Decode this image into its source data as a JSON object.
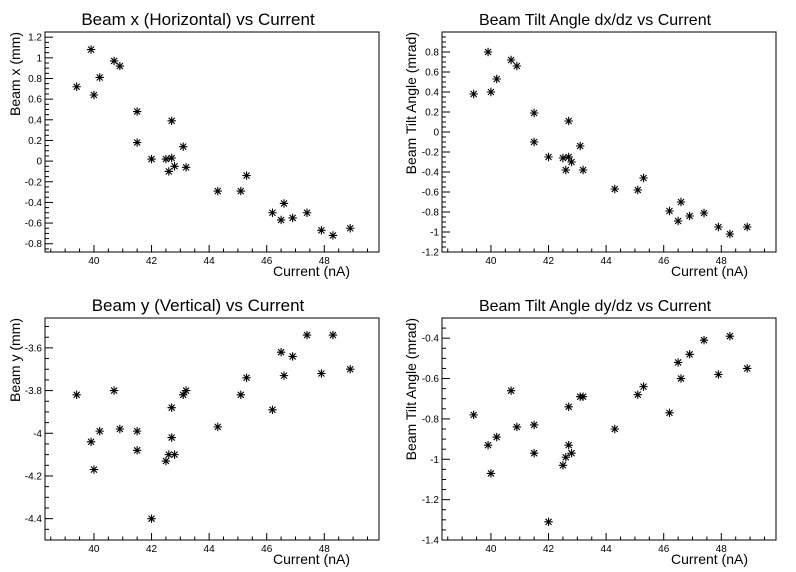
{
  "chart_data": [
    {
      "type": "scatter",
      "title": "Beam x (Horizontal) vs Current",
      "xlabel": "Current (nA)",
      "ylabel": "Beam x (mm)",
      "xlim": [
        38.3,
        49.9
      ],
      "ylim": [
        -0.88,
        1.25
      ],
      "xticks": [
        40,
        42,
        44,
        46,
        48
      ],
      "yticks": [
        -0.8,
        -0.6,
        -0.4,
        -0.2,
        0,
        0.2,
        0.4,
        0.6,
        0.8,
        1,
        1.2
      ],
      "marker": "asterisk",
      "grid": false,
      "points": [
        [
          39.4,
          0.72
        ],
        [
          39.9,
          1.08
        ],
        [
          40.0,
          0.64
        ],
        [
          40.2,
          0.81
        ],
        [
          40.7,
          0.97
        ],
        [
          40.9,
          0.92
        ],
        [
          41.5,
          0.48
        ],
        [
          41.5,
          0.18
        ],
        [
          42.0,
          0.02
        ],
        [
          42.5,
          0.02
        ],
        [
          42.6,
          -0.1
        ],
        [
          42.7,
          0.03
        ],
        [
          42.7,
          0.39
        ],
        [
          42.8,
          -0.05
        ],
        [
          43.1,
          0.14
        ],
        [
          43.2,
          -0.06
        ],
        [
          44.3,
          -0.29
        ],
        [
          45.1,
          -0.29
        ],
        [
          45.3,
          -0.14
        ],
        [
          46.2,
          -0.5
        ],
        [
          46.5,
          -0.57
        ],
        [
          46.6,
          -0.41
        ],
        [
          46.9,
          -0.55
        ],
        [
          47.4,
          -0.5
        ],
        [
          47.9,
          -0.67
        ],
        [
          48.3,
          -0.72
        ],
        [
          48.9,
          -0.65
        ]
      ]
    },
    {
      "type": "scatter",
      "title": "Beam Tilt Angle dx/dz vs Current",
      "xlabel": "Current (nA)",
      "ylabel": "Beam Tilt Angle (mrad)",
      "xlim": [
        38.3,
        49.9
      ],
      "ylim": [
        -1.2,
        1.0
      ],
      "xticks": [
        40,
        42,
        44,
        46,
        48
      ],
      "yticks": [
        -1.2,
        -1,
        -0.8,
        -0.6,
        -0.4,
        -0.2,
        0,
        0.2,
        0.4,
        0.6,
        0.8
      ],
      "marker": "asterisk",
      "grid": false,
      "points": [
        [
          39.4,
          0.38
        ],
        [
          39.9,
          0.8
        ],
        [
          40.0,
          0.4
        ],
        [
          40.2,
          0.53
        ],
        [
          40.7,
          0.72
        ],
        [
          40.9,
          0.66
        ],
        [
          41.5,
          0.19
        ],
        [
          41.5,
          -0.1
        ],
        [
          42.0,
          -0.25
        ],
        [
          42.5,
          -0.26
        ],
        [
          42.6,
          -0.38
        ],
        [
          42.7,
          -0.25
        ],
        [
          42.7,
          0.11
        ],
        [
          42.8,
          -0.3
        ],
        [
          43.1,
          -0.14
        ],
        [
          43.2,
          -0.38
        ],
        [
          44.3,
          -0.57
        ],
        [
          45.1,
          -0.58
        ],
        [
          45.3,
          -0.46
        ],
        [
          46.2,
          -0.79
        ],
        [
          46.5,
          -0.89
        ],
        [
          46.6,
          -0.7
        ],
        [
          46.9,
          -0.84
        ],
        [
          47.4,
          -0.81
        ],
        [
          47.9,
          -0.95
        ],
        [
          48.3,
          -1.02
        ],
        [
          48.9,
          -0.95
        ]
      ]
    },
    {
      "type": "scatter",
      "title": "Beam y (Vertical) vs Current",
      "xlabel": "Current (nA)",
      "ylabel": "Beam y (mm)",
      "xlim": [
        38.3,
        49.9
      ],
      "ylim": [
        -4.5,
        -3.46
      ],
      "xticks": [
        40,
        42,
        44,
        46,
        48
      ],
      "yticks": [
        -4.4,
        -4.2,
        -4,
        -3.8,
        -3.6
      ],
      "marker": "asterisk",
      "grid": false,
      "points": [
        [
          39.4,
          -3.82
        ],
        [
          39.9,
          -4.04
        ],
        [
          40.0,
          -4.17
        ],
        [
          40.2,
          -3.99
        ],
        [
          40.7,
          -3.8
        ],
        [
          40.9,
          -3.98
        ],
        [
          41.5,
          -3.99
        ],
        [
          41.5,
          -4.08
        ],
        [
          42.0,
          -4.4
        ],
        [
          42.5,
          -4.13
        ],
        [
          42.6,
          -4.1
        ],
        [
          42.7,
          -4.02
        ],
        [
          42.7,
          -3.88
        ],
        [
          42.8,
          -4.1
        ],
        [
          43.1,
          -3.82
        ],
        [
          43.2,
          -3.8
        ],
        [
          44.3,
          -3.97
        ],
        [
          45.1,
          -3.82
        ],
        [
          45.3,
          -3.74
        ],
        [
          46.2,
          -3.89
        ],
        [
          46.5,
          -3.62
        ],
        [
          46.6,
          -3.73
        ],
        [
          46.9,
          -3.64
        ],
        [
          47.4,
          -3.54
        ],
        [
          47.9,
          -3.72
        ],
        [
          48.3,
          -3.54
        ],
        [
          48.9,
          -3.7
        ]
      ]
    },
    {
      "type": "scatter",
      "title": "Beam Tilt Angle dy/dz vs Current",
      "xlabel": "Current (nA)",
      "ylabel": "Beam Tilt Angle (mrad)",
      "xlim": [
        38.3,
        49.9
      ],
      "ylim": [
        -1.4,
        -0.3
      ],
      "xticks": [
        40,
        42,
        44,
        46,
        48
      ],
      "yticks": [
        -1.4,
        -1.2,
        -1,
        -0.8,
        -0.6,
        -0.4
      ],
      "marker": "asterisk",
      "grid": false,
      "points": [
        [
          39.4,
          -0.78
        ],
        [
          39.9,
          -0.93
        ],
        [
          40.0,
          -1.07
        ],
        [
          40.2,
          -0.89
        ],
        [
          40.7,
          -0.66
        ],
        [
          40.9,
          -0.84
        ],
        [
          41.5,
          -0.83
        ],
        [
          41.5,
          -0.97
        ],
        [
          42.0,
          -1.31
        ],
        [
          42.5,
          -1.03
        ],
        [
          42.6,
          -0.99
        ],
        [
          42.7,
          -0.93
        ],
        [
          42.7,
          -0.74
        ],
        [
          42.8,
          -0.97
        ],
        [
          43.1,
          -0.69
        ],
        [
          43.2,
          -0.69
        ],
        [
          44.3,
          -0.85
        ],
        [
          45.1,
          -0.68
        ],
        [
          45.3,
          -0.64
        ],
        [
          46.2,
          -0.77
        ],
        [
          46.5,
          -0.52
        ],
        [
          46.6,
          -0.6
        ],
        [
          46.9,
          -0.48
        ],
        [
          47.4,
          -0.41
        ],
        [
          47.9,
          -0.58
        ],
        [
          48.3,
          -0.39
        ],
        [
          48.9,
          -0.55
        ]
      ]
    }
  ]
}
